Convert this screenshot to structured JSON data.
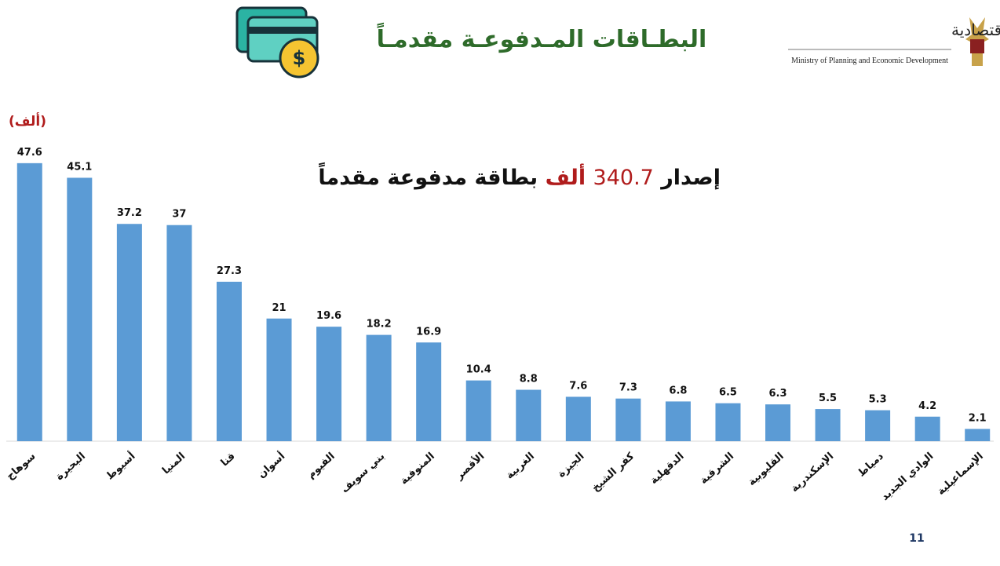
{
  "header": {
    "ministry_ar": "وزارة التخطيط والتنمية الاقتصادية",
    "ministry_en": "Ministry of Planning and Economic Development"
  },
  "headline": {
    "prefix": "إصدار",
    "total": 340.7,
    "unit": "ألف",
    "suffix": "بطاقة مدفوعة مقدماً"
  },
  "page_number": "11",
  "chart_data": {
    "type": "bar",
    "title": "البطـاقات المـدفوعـة مقدمـاً",
    "unit_label": "(ألف)",
    "categories": [
      "سوهاج",
      "البحيرة",
      "أسيوط",
      "المنيا",
      "قنا",
      "أسوان",
      "الفيوم",
      "بني سويف",
      "المنوفية",
      "الأقصر",
      "الغربية",
      "الجيزة",
      "كفر الشيخ",
      "الدقهلية",
      "الشرقية",
      "القليوبية",
      "الإسكندرية",
      "دمياط",
      "الوادي الجديد",
      "الإسماعيلية"
    ],
    "values": [
      47.6,
      45.1,
      37.2,
      37,
      27.3,
      21,
      19.6,
      18.2,
      16.9,
      10.4,
      8.8,
      7.6,
      7.3,
      6.8,
      6.5,
      6.3,
      5.5,
      5.3,
      4.2,
      2.1
    ],
    "color": "#5b9bd5",
    "ylim": [
      0,
      50
    ],
    "grid": false
  }
}
